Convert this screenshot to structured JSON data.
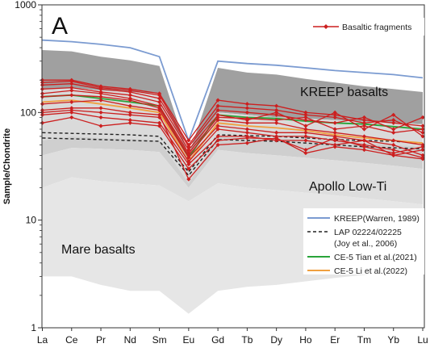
{
  "chart_data": {
    "type": "line",
    "panel_label": "A",
    "ylabel": "Sample/Chondrite",
    "yscale": "log",
    "ylim": [
      1,
      1000
    ],
    "yticks": [
      "1",
      "10",
      "100",
      "1000"
    ],
    "categories": [
      "La",
      "Ce",
      "Pr",
      "Nd",
      "Sm",
      "Eu",
      "Gd",
      "Tb",
      "Dy",
      "Ho",
      "Er",
      "Tm",
      "Yb",
      "Lu"
    ],
    "region_labels": {
      "kreep": "KREEP basalts",
      "apollo": "Apollo Low-Ti",
      "mare": "Mare basalts"
    },
    "regions": {
      "kreep_upper": [
        380,
        370,
        330,
        305,
        270,
        40,
        260,
        235,
        225,
        205,
        190,
        175,
        165,
        155
      ],
      "kreep_lower": [
        165,
        170,
        160,
        155,
        150,
        40,
        100,
        95,
        90,
        88,
        85,
        82,
        80,
        78
      ],
      "apollo_upper": [
        55,
        60,
        58,
        57,
        55,
        22,
        60,
        58,
        58,
        56,
        55,
        52,
        50,
        48
      ],
      "apollo_lower": [
        40,
        47,
        46,
        45,
        43,
        20,
        45,
        42,
        40,
        38,
        36,
        34,
        32,
        30
      ],
      "mare_upper": [
        20,
        25,
        23,
        22,
        21,
        15,
        22,
        20,
        19,
        18,
        17,
        16,
        15,
        14
      ],
      "mare_lower": [
        3,
        3,
        2.5,
        2.2,
        2.2,
        1.35,
        2.2,
        2.4,
        2.5,
        2.7,
        2.9,
        3.1,
        3.3,
        3.5
      ]
    },
    "reference_series": [
      {
        "name": "KREEP(Warren, 1989)",
        "color": "#7b9bd1",
        "style": "solid",
        "values": [
          470,
          455,
          430,
          400,
          330,
          55,
          300,
          285,
          275,
          260,
          245,
          235,
          225,
          210
        ]
      },
      {
        "name": "LAP 02224/02225",
        "name_line2": "(Joy et al., 2006)",
        "color": "#222222",
        "style": "dashed",
        "values": [
          65,
          64,
          63,
          62,
          60,
          28,
          62,
          61,
          60,
          58,
          56,
          55,
          54,
          52
        ]
      },
      {
        "name": "",
        "color": "#222222",
        "style": "dashed",
        "values": [
          58,
          57,
          56,
          55,
          54,
          26,
          56,
          55,
          54,
          52,
          50,
          48,
          47,
          46
        ]
      },
      {
        "name": "CE-5 Tian et al.(2021)",
        "color": "#29a43a",
        "style": "solid",
        "values": [
          140,
          145,
          135,
          125,
          115,
          38,
          95,
          90,
          88,
          83,
          80,
          78,
          74,
          70
        ]
      },
      {
        "name": "CE-5 Li et al.(2022)",
        "color": "#f0a040",
        "style": "solid",
        "values": [
          125,
          130,
          120,
          110,
          100,
          35,
          80,
          75,
          72,
          68,
          62,
          58,
          55,
          52
        ]
      }
    ],
    "samples_name": "Basaltic fragments",
    "samples_color": "#cc1f1f",
    "samples": [
      [
        200,
        200,
        175,
        165,
        150,
        55,
        130,
        120,
        115,
        100,
        95,
        85,
        80,
        75
      ],
      [
        190,
        195,
        170,
        160,
        145,
        50,
        115,
        110,
        105,
        95,
        90,
        80,
        85,
        65
      ],
      [
        180,
        185,
        165,
        155,
        135,
        48,
        105,
        100,
        95,
        85,
        80,
        90,
        70,
        90
      ],
      [
        165,
        170,
        155,
        145,
        125,
        45,
        95,
        85,
        100,
        75,
        100,
        70,
        95,
        60
      ],
      [
        150,
        160,
        150,
        135,
        115,
        42,
        90,
        88,
        85,
        90,
        70,
        75,
        65,
        70
      ],
      [
        140,
        145,
        140,
        130,
        110,
        40,
        85,
        80,
        80,
        70,
        65,
        60,
        55,
        50
      ],
      [
        120,
        125,
        130,
        115,
        105,
        38,
        75,
        70,
        65,
        65,
        60,
        55,
        50,
        40
      ],
      [
        100,
        105,
        100,
        95,
        90,
        35,
        70,
        65,
        60,
        60,
        55,
        50,
        45,
        38
      ],
      [
        95,
        100,
        90,
        85,
        80,
        33,
        60,
        60,
        55,
        55,
        50,
        55,
        40,
        45
      ],
      [
        80,
        90,
        75,
        80,
        75,
        30,
        55,
        58,
        57,
        45,
        58,
        48,
        42,
        48
      ],
      [
        105,
        110,
        110,
        100,
        95,
        24,
        50,
        52,
        58,
        42,
        48,
        45,
        40,
        37
      ]
    ],
    "grid": false,
    "legend_position": "top-right"
  }
}
